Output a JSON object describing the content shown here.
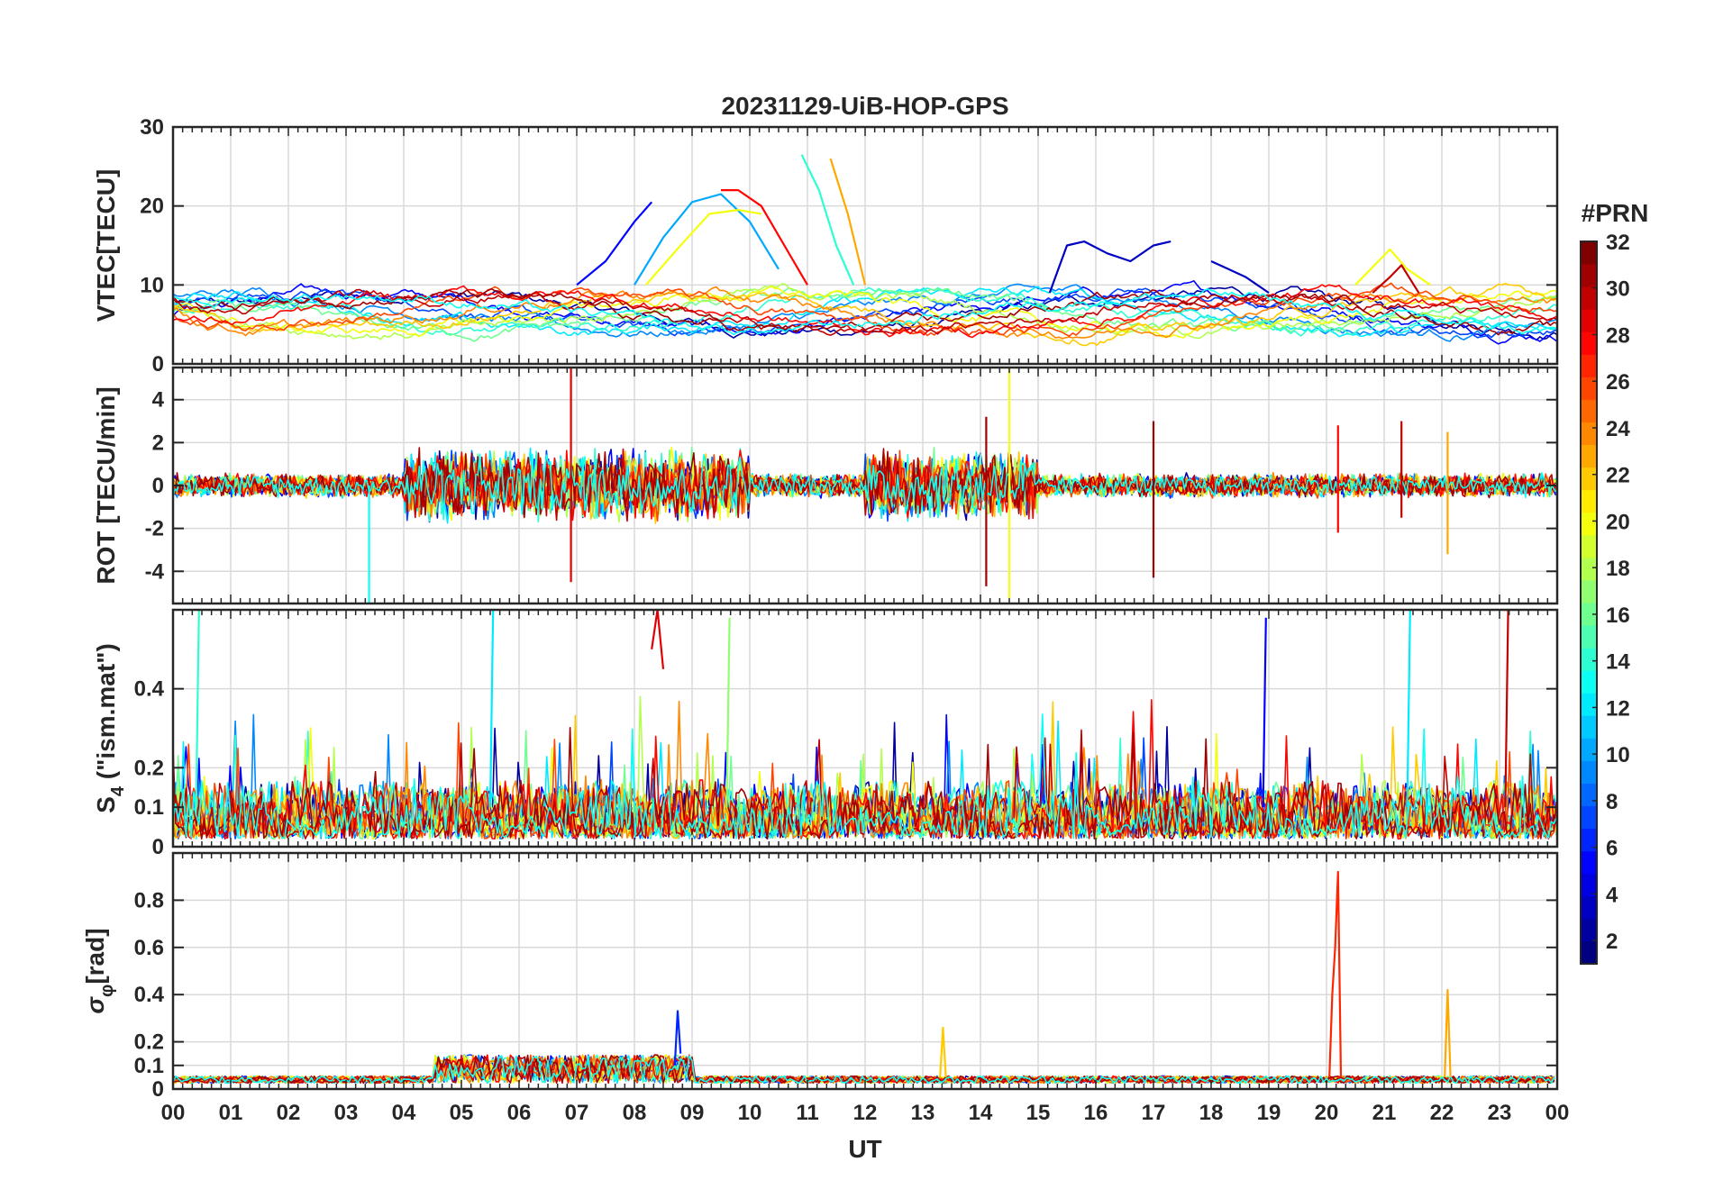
{
  "title": "20231129-UiB-HOP-GPS",
  "xlabel": "UT",
  "colorbar": {
    "label": "#PRN",
    "ticks": [
      "2",
      "4",
      "6",
      "8",
      "10",
      "12",
      "14",
      "16",
      "18",
      "20",
      "22",
      "24",
      "26",
      "28",
      "30",
      "32"
    ],
    "range": [
      1,
      32
    ],
    "colormap": "jet"
  },
  "x_ticks": [
    "00",
    "01",
    "02",
    "03",
    "04",
    "05",
    "06",
    "07",
    "08",
    "09",
    "10",
    "11",
    "12",
    "13",
    "14",
    "15",
    "16",
    "17",
    "18",
    "19",
    "20",
    "21",
    "22",
    "23",
    "00"
  ],
  "chart_data": [
    {
      "type": "line",
      "ylabel": "VTEC[TECU]",
      "ylim": [
        0,
        30
      ],
      "y_ticks": [
        0,
        10,
        20,
        30
      ],
      "grid": true,
      "series": [
        {
          "prn": 5,
          "x": [
            7.0,
            7.5,
            8.0,
            8.3
          ],
          "y": [
            10,
            13,
            18,
            20.5
          ]
        },
        {
          "prn": 10,
          "x": [
            8.0,
            8.5,
            9.0,
            9.5,
            10.0,
            10.5
          ],
          "y": [
            10,
            16,
            20.5,
            21.5,
            18,
            12
          ]
        },
        {
          "prn": 28,
          "x": [
            9.5,
            9.8,
            10.2,
            10.6,
            11.0
          ],
          "y": [
            22,
            22,
            20,
            15,
            10
          ]
        },
        {
          "prn": 20,
          "x": [
            8.2,
            8.8,
            9.3,
            9.8,
            10.2
          ],
          "y": [
            10,
            15,
            19,
            19.5,
            19
          ]
        },
        {
          "prn": 14,
          "x": [
            10.9,
            11.2,
            11.5,
            11.8
          ],
          "y": [
            26.5,
            22,
            15,
            10
          ]
        },
        {
          "prn": 23,
          "x": [
            11.4,
            11.7,
            12.0
          ],
          "y": [
            26,
            19,
            10
          ]
        },
        {
          "prn": 3,
          "x": [
            15.2,
            15.5,
            15.8,
            16.2,
            16.6,
            17.0,
            17.3
          ],
          "y": [
            9,
            15,
            15.5,
            14,
            13,
            15,
            15.5
          ]
        },
        {
          "prn": 3,
          "x": [
            18.0,
            18.3,
            18.6,
            19.0
          ],
          "y": [
            13,
            12,
            11,
            9
          ]
        },
        {
          "prn": 20,
          "x": [
            20.5,
            20.9,
            21.1,
            21.4,
            21.8
          ],
          "y": [
            10,
            13,
            14.5,
            12,
            10
          ]
        },
        {
          "prn": 30,
          "x": [
            20.8,
            21.1,
            21.3,
            21.6
          ],
          "y": [
            9,
            11,
            12.5,
            9
          ]
        }
      ]
    },
    {
      "type": "line",
      "ylabel": "ROT [TECU/min]",
      "ylim": [
        -5.5,
        5.5
      ],
      "y_ticks": [
        -4,
        -2,
        0,
        2,
        4
      ],
      "grid": true,
      "series": [
        {
          "prn": 29,
          "x": [
            6.9,
            6.9,
            6.9
          ],
          "y": [
            -4.5,
            5.5,
            0
          ]
        },
        {
          "prn": 13,
          "x": [
            3.4,
            3.4
          ],
          "y": [
            -5.5,
            0
          ]
        },
        {
          "prn": 20,
          "x": [
            14.5,
            14.5,
            14.5
          ],
          "y": [
            5.5,
            -5.2,
            0
          ]
        },
        {
          "prn": 31,
          "x": [
            14.1,
            14.1
          ],
          "y": [
            3.2,
            -4.7
          ]
        },
        {
          "prn": 31,
          "x": [
            17.0,
            17.0
          ],
          "y": [
            3.0,
            -4.3
          ]
        },
        {
          "prn": 28,
          "x": [
            20.2,
            20.2
          ],
          "y": [
            2.8,
            -2.2
          ]
        },
        {
          "prn": 30,
          "x": [
            21.3,
            21.3
          ],
          "y": [
            3.0,
            -1.5
          ]
        },
        {
          "prn": 23,
          "x": [
            22.1,
            22.1
          ],
          "y": [
            2.5,
            -3.2
          ]
        }
      ]
    },
    {
      "type": "line",
      "ylabel": "S4 (\"ism.mat\")",
      "ylabel_main": "S",
      "ylabel_sub": "4",
      "ylabel_rest": " (\"ism.mat\")",
      "ylim": [
        0,
        0.6
      ],
      "y_ticks": [
        0,
        0.1,
        0.2,
        0.4
      ],
      "grid": true,
      "series": [
        {
          "prn": 29,
          "x": [
            8.3,
            8.4,
            8.5
          ],
          "y": [
            0.5,
            0.6,
            0.45
          ]
        },
        {
          "prn": 14,
          "x": [
            0.4,
            0.45
          ],
          "y": [
            0.1,
            0.6
          ]
        },
        {
          "prn": 12,
          "x": [
            5.5,
            5.55
          ],
          "y": [
            0.1,
            0.6
          ]
        },
        {
          "prn": 17,
          "x": [
            9.6,
            9.65
          ],
          "y": [
            0.1,
            0.58
          ]
        },
        {
          "prn": 5,
          "x": [
            18.9,
            18.95
          ],
          "y": [
            0.1,
            0.58
          ]
        },
        {
          "prn": 12,
          "x": [
            21.4,
            21.45
          ],
          "y": [
            0.1,
            0.6
          ]
        },
        {
          "prn": 30,
          "x": [
            23.1,
            23.15
          ],
          "y": [
            0.1,
            0.6
          ]
        }
      ]
    },
    {
      "type": "line",
      "ylabel": "σφ[rad]",
      "ylabel_main": "σ",
      "ylabel_sub": "φ",
      "ylabel_rest": "[rad]",
      "ylim": [
        0,
        1.0
      ],
      "y_ticks": [
        0,
        0.1,
        0.2,
        0.4,
        0.6,
        0.8
      ],
      "grid": true,
      "series": [
        {
          "prn": 27,
          "x": [
            20.05,
            20.1,
            20.15,
            20.2,
            20.25
          ],
          "y": [
            0.05,
            0.4,
            0.6,
            0.92,
            0.05
          ]
        },
        {
          "prn": 23,
          "x": [
            22.05,
            22.1,
            22.15
          ],
          "y": [
            0.05,
            0.42,
            0.05
          ]
        },
        {
          "prn": 6,
          "x": [
            8.7,
            8.75,
            8.8
          ],
          "y": [
            0.1,
            0.33,
            0.15
          ]
        },
        {
          "prn": 22,
          "x": [
            13.3,
            13.35,
            13.4
          ],
          "y": [
            0.05,
            0.26,
            0.05
          ]
        }
      ]
    }
  ]
}
